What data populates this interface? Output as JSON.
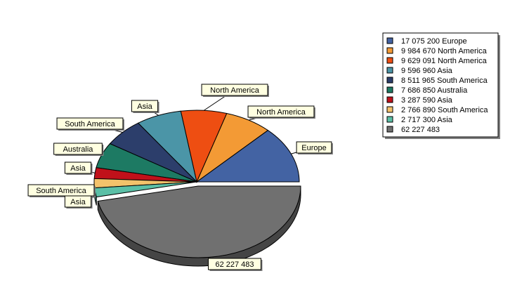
{
  "chart_data": {
    "type": "pie",
    "style": "3d-exploded-last",
    "legend_position": "top-right",
    "slices": [
      {
        "value": 17075200,
        "label": "Europe",
        "legend": "17 075 200 Europe",
        "color": "#4363A3"
      },
      {
        "value": 9984670,
        "label": "North America",
        "legend": "9 984 670 North America",
        "color": "#F39A35"
      },
      {
        "value": 9629091,
        "label": "North America",
        "legend": "9 629 091 North America",
        "color": "#EE4E12"
      },
      {
        "value": 9596960,
        "label": "Asia",
        "legend": "9 596 960 Asia",
        "color": "#4B95A7"
      },
      {
        "value": 8511965,
        "label": "South America",
        "legend": "8 511 965 South America",
        "color": "#2C3E6B"
      },
      {
        "value": 7686850,
        "label": "Australia",
        "legend": "7 686 850 Australia",
        "color": "#1D7A63"
      },
      {
        "value": 3287590,
        "label": "Asia",
        "legend": "3 287 590 Asia",
        "color": "#C0111A"
      },
      {
        "value": 2766890,
        "label": "South America",
        "legend": "2 766 890 South America",
        "color": "#F3C26B"
      },
      {
        "value": 2717300,
        "label": "Asia",
        "legend": "2 717 300 Asia",
        "color": "#5BBFA6"
      },
      {
        "value": 62227483,
        "label": "62 227 483",
        "legend": "62 227 483",
        "color": "#707070"
      }
    ]
  }
}
